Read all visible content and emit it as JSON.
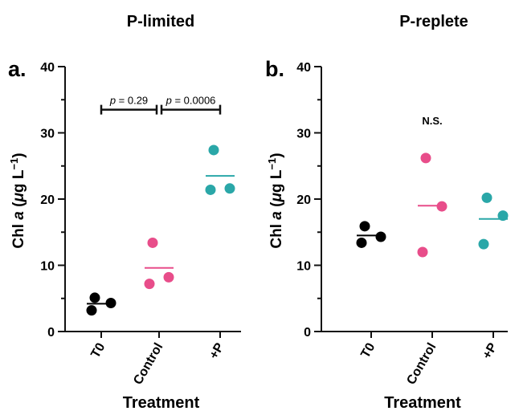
{
  "chart_data": [
    {
      "type": "scatter",
      "panel_letter": "a.",
      "title": "P-limited",
      "xlabel": "Treatment",
      "ylabel": {
        "prefix": "Chl ",
        "italic_a": "a",
        "open": " (",
        "mu": "μ",
        "g": "g L",
        "exp": "−1",
        "close": ")"
      },
      "ylim": [
        0,
        40
      ],
      "yticks": [
        0,
        10,
        20,
        30,
        40
      ],
      "categories": [
        "T0",
        "Control",
        "+P"
      ],
      "series": [
        {
          "category": "T0",
          "color": "#000000",
          "points": [
            3.2,
            5.1,
            4.3
          ],
          "mean": 4.2
        },
        {
          "category": "Control",
          "color": "#e84d8a",
          "points": [
            7.2,
            13.4,
            8.2
          ],
          "mean": 9.6
        },
        {
          "category": "+P",
          "color": "#2aa7a8",
          "points": [
            21.4,
            27.4,
            21.6
          ],
          "mean": 23.5
        }
      ],
      "annotations": [
        {
          "type": "bracket",
          "from": "T0",
          "to": "Control",
          "y": 33.5,
          "label_p": "p",
          "label_rest": " = 0.29"
        },
        {
          "type": "bracket",
          "from": "Control",
          "to": "+P",
          "y": 33.5,
          "label_p": "p",
          "label_rest": " = 0.0006"
        }
      ]
    },
    {
      "type": "scatter",
      "panel_letter": "b.",
      "title": "P-replete",
      "xlabel": "Treatment",
      "ylabel": {
        "prefix": "Chl ",
        "italic_a": "a",
        "open": " (",
        "mu": "μ",
        "g": "g L",
        "exp": "−1",
        "close": ")"
      },
      "ylim": [
        0,
        40
      ],
      "yticks": [
        0,
        10,
        20,
        30,
        40
      ],
      "categories": [
        "T0",
        "Control",
        "+P"
      ],
      "series": [
        {
          "category": "T0",
          "color": "#000000",
          "points": [
            13.4,
            15.9,
            14.3
          ],
          "mean": 14.5
        },
        {
          "category": "Control",
          "color": "#e84d8a",
          "points": [
            12.0,
            26.2,
            18.9
          ],
          "mean": 19.0
        },
        {
          "category": "+P",
          "color": "#2aa7a8",
          "points": [
            13.2,
            20.2,
            17.5
          ],
          "mean": 17.0
        }
      ],
      "annotations": [
        {
          "type": "text",
          "label": "N.S.",
          "y": 31.3,
          "at": "Control"
        }
      ]
    }
  ]
}
